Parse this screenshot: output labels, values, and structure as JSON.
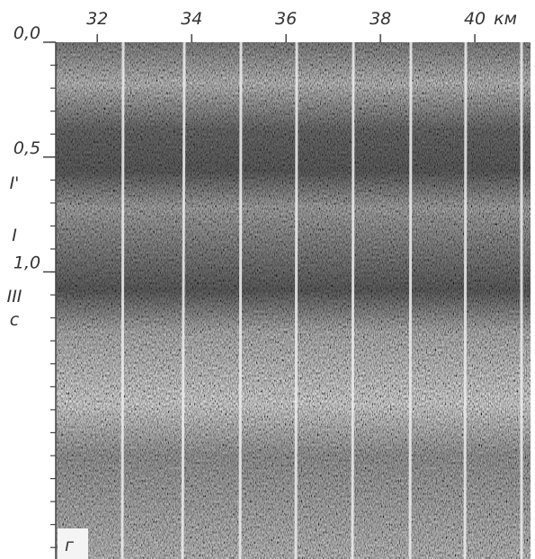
{
  "section": {
    "x_axis": {
      "unit": "км",
      "lim": [
        31.12,
        41.18
      ],
      "ticks": [
        32,
        34,
        36,
        38,
        40
      ]
    },
    "y_axis": {
      "lim": [
        0,
        2.25
      ],
      "ticks": [
        {
          "value": 0,
          "label": "0,0"
        },
        {
          "value": 0.5,
          "label": "0,5"
        },
        {
          "value": 1.0,
          "label": "1,0"
        }
      ]
    },
    "horizons": [
      {
        "label": "I'"
      },
      {
        "label": "I"
      },
      {
        "label": "III"
      },
      {
        "label": "c"
      }
    ],
    "panel_label": "г"
  }
}
